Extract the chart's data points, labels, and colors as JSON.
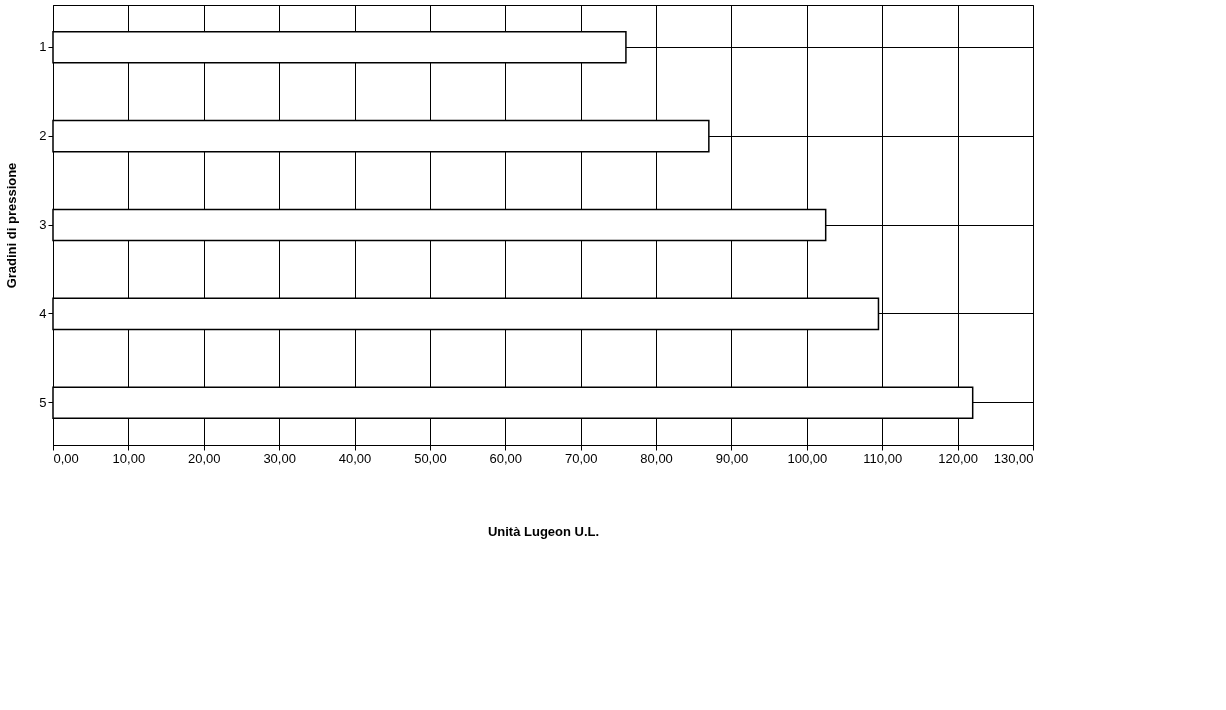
{
  "chart_data": {
    "type": "bar",
    "orientation": "horizontal",
    "xlabel": "Unità Lugeon U.L.",
    "ylabel": "Gradini di pressione",
    "categories": [
      "1",
      "2",
      "3",
      "4",
      "5"
    ],
    "series": [
      {
        "color": "#ffffff",
        "values": [
          76,
          87,
          102.5,
          109.5,
          122
        ]
      }
    ],
    "xlim": [
      0,
      130
    ],
    "xticks": [
      {
        "value": 0,
        "label": "0,00"
      },
      {
        "value": 10,
        "label": "10,00"
      },
      {
        "value": 20,
        "label": "20,00"
      },
      {
        "value": 30,
        "label": "30,00"
      },
      {
        "value": 40,
        "label": "40,00"
      },
      {
        "value": 50,
        "label": "50,00"
      },
      {
        "value": 60,
        "label": "60,00"
      },
      {
        "value": 70,
        "label": "70,00"
      },
      {
        "value": 80,
        "label": "80,00"
      },
      {
        "value": 90,
        "label": "90,00"
      },
      {
        "value": 100,
        "label": "100,00"
      },
      {
        "value": 110,
        "label": "110,00"
      },
      {
        "value": 120,
        "label": "120,00"
      },
      {
        "value": 130,
        "label": "130,00"
      }
    ],
    "grid": true,
    "legend": false
  }
}
